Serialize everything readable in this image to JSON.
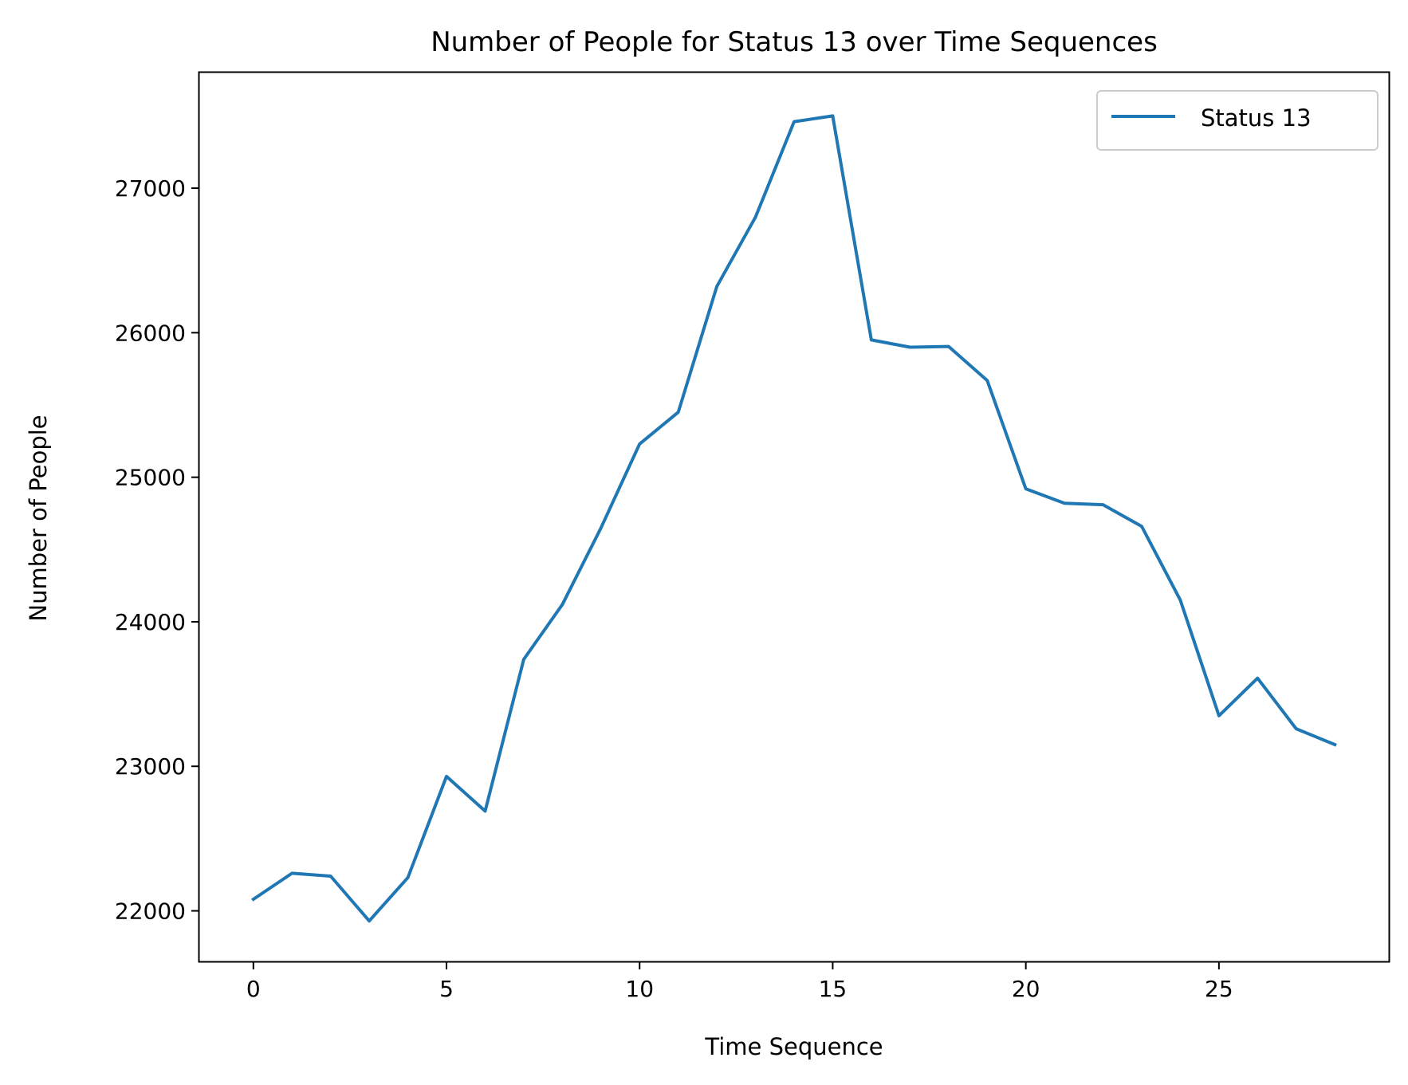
{
  "chart_data": {
    "type": "line",
    "title": "Number of People for Status 13 over Time Sequences",
    "xlabel": "Time Sequence",
    "ylabel": "Number of People",
    "xlim": [
      -1.4,
      29.4
    ],
    "ylim": [
      21650,
      27800
    ],
    "xticks": [
      0,
      5,
      10,
      15,
      20,
      25
    ],
    "yticks": [
      22000,
      23000,
      24000,
      25000,
      26000,
      27000
    ],
    "grid": false,
    "legend_position": "top-right",
    "series": [
      {
        "name": "Status 13",
        "color": "#1f77b4",
        "x": [
          0,
          1,
          2,
          3,
          4,
          5,
          6,
          7,
          8,
          9,
          10,
          11,
          12,
          13,
          14,
          15,
          16,
          17,
          18,
          19,
          20,
          21,
          22,
          23,
          24,
          25,
          26,
          27,
          28
        ],
        "y": [
          22080,
          22260,
          22240,
          21930,
          22230,
          22930,
          22690,
          23740,
          24120,
          24650,
          25230,
          25450,
          26320,
          26800,
          27460,
          27500,
          25950,
          25900,
          25905,
          25670,
          24920,
          24820,
          24810,
          24660,
          24150,
          23350,
          23610,
          23260,
          23150
        ]
      }
    ]
  }
}
